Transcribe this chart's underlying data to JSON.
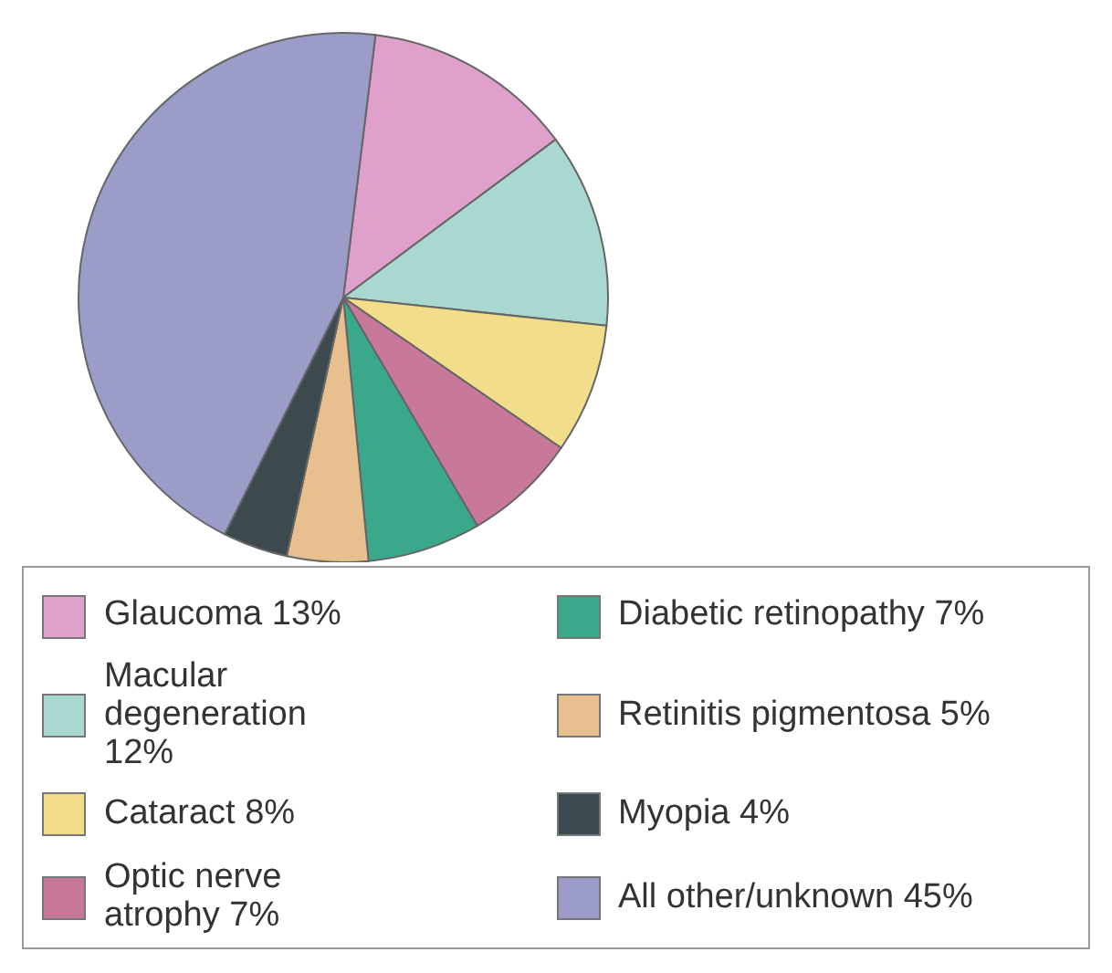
{
  "chart_data": {
    "type": "pie",
    "categories": [
      "Glaucoma",
      "Macular degeneration",
      "Cataract",
      "Optic nerve atrophy",
      "Diabetic retinopathy",
      "Retinitis pigmentosa",
      "Myopia",
      "All other/unknown"
    ],
    "values": [
      13,
      12,
      8,
      7,
      7,
      5,
      4,
      45
    ],
    "value_labels": [
      "13%",
      "12%",
      "8%",
      "7%",
      "7%",
      "5%",
      "4%",
      "45%"
    ],
    "colors": [
      "#e0a0cc",
      "#a8d8d0",
      "#f2de8a",
      "#c87898",
      "#3aa88a",
      "#e8c090",
      "#3c4a50",
      "#9c9cc8"
    ],
    "legend": "bottom"
  }
}
